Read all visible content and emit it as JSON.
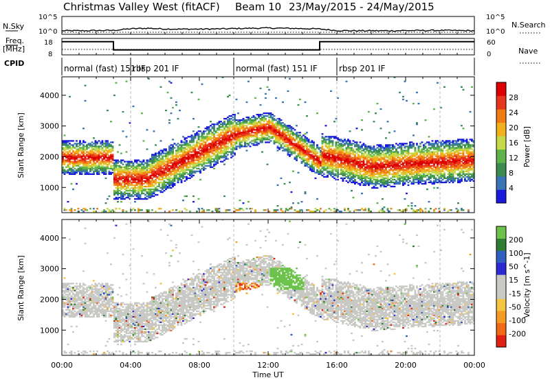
{
  "header": {
    "station": "Christmas Valley West (fitACF)",
    "beam": "Beam 10",
    "dates": "23/May/2015 - 24/May/2015"
  },
  "side_labels": {
    "nsky": "N.Sky",
    "nsearch": "N.Search",
    "freq_line1": "Freq.",
    "freq_line2": "[MHz]",
    "nave": "Nave",
    "cpid": "CPID"
  },
  "nsky_axis": {
    "top": "10^5",
    "bottom": "10^0"
  },
  "nsearch_axis": {
    "top": "10^5",
    "bottom": "10^0"
  },
  "freq_axis": {
    "top": "18",
    "bottom": "8"
  },
  "nave_axis": {
    "top": "60",
    "bottom": "0"
  },
  "chart_data": [
    {
      "type": "line",
      "name": "N.Sky noise",
      "x_unit": "UT hours",
      "x": [
        0,
        1,
        2,
        3,
        4,
        5,
        6,
        7,
        8,
        9,
        10,
        11,
        12,
        13,
        14,
        15,
        16,
        17,
        18,
        19,
        20,
        21,
        22,
        23,
        24
      ],
      "log10_values": [
        1.0,
        1.0,
        1.05,
        1.1,
        1.55,
        1.7,
        1.5,
        1.45,
        1.45,
        1.5,
        1.6,
        1.7,
        1.75,
        1.7,
        1.6,
        1.5,
        1.05,
        1.0,
        1.0,
        1.0,
        1.05,
        1.05,
        1.1,
        1.05,
        1.0
      ]
    },
    {
      "type": "line",
      "name": "Frequency (MHz)",
      "x": [
        0,
        3.0,
        3.0,
        15.0,
        15.0,
        24
      ],
      "values": [
        16.0,
        16.0,
        11.0,
        11.0,
        16.0,
        16.0
      ]
    },
    {
      "type": "table",
      "name": "CPID",
      "segments": [
        {
          "start": 0,
          "end": 4.0,
          "label": "normal (fast) 151 IF"
        },
        {
          "start": 4.0,
          "end": 10.0,
          "label": "rbsp 201 IF"
        },
        {
          "start": 10.0,
          "end": 16.0,
          "label": "normal (fast) 151 IF"
        },
        {
          "start": 16.0,
          "end": 22.0,
          "label": "rbsp 201 IF"
        }
      ]
    },
    {
      "type": "heatmap",
      "name": "Power",
      "ylabel": "Slant Range [km]",
      "xlim": [
        0,
        24
      ],
      "ylim": [
        180,
        4600
      ],
      "yticks": [
        1000,
        2000,
        3000,
        4000
      ],
      "colorbar": {
        "label": "Power [dB]",
        "ticks": [
          4,
          8,
          12,
          16,
          20,
          24,
          28
        ],
        "range": [
          0,
          32
        ]
      },
      "gap_times": [
        4.0,
        10.0,
        16.0,
        22.0
      ]
    },
    {
      "type": "heatmap",
      "name": "Velocity",
      "ylabel": "Slant Range [km]",
      "xlabel": "Time UT",
      "xlim": [
        0,
        24
      ],
      "xticks": [
        "00:00",
        "04:00",
        "08:00",
        "12:00",
        "16:00",
        "20:00",
        "00:00"
      ],
      "ylim": [
        180,
        4600
      ],
      "yticks": [
        1000,
        2000,
        3000,
        4000
      ],
      "colorbar": {
        "label": "Velocity [m s^-1]",
        "ticks": [
          200,
          100,
          50,
          15,
          -15,
          -50,
          -100,
          -200
        ]
      },
      "gap_times": [
        4.0,
        10.0,
        16.0,
        22.0
      ]
    }
  ],
  "colors": {
    "power": [
      "#1a1adc",
      "#3b74b6",
      "#3c8c50",
      "#5fb34a",
      "#c6d94a",
      "#f2b01c",
      "#f07a14",
      "#e8361c",
      "#dc0000"
    ],
    "velocity_pos": [
      "#2a2ad0",
      "#2f5fbf",
      "#2e7d32",
      "#6cc24a"
    ],
    "velocity_neutral": "#c8c8c4",
    "velocity_neg": [
      "#f5c542",
      "#f59a23",
      "#f06a18",
      "#e02010"
    ]
  }
}
